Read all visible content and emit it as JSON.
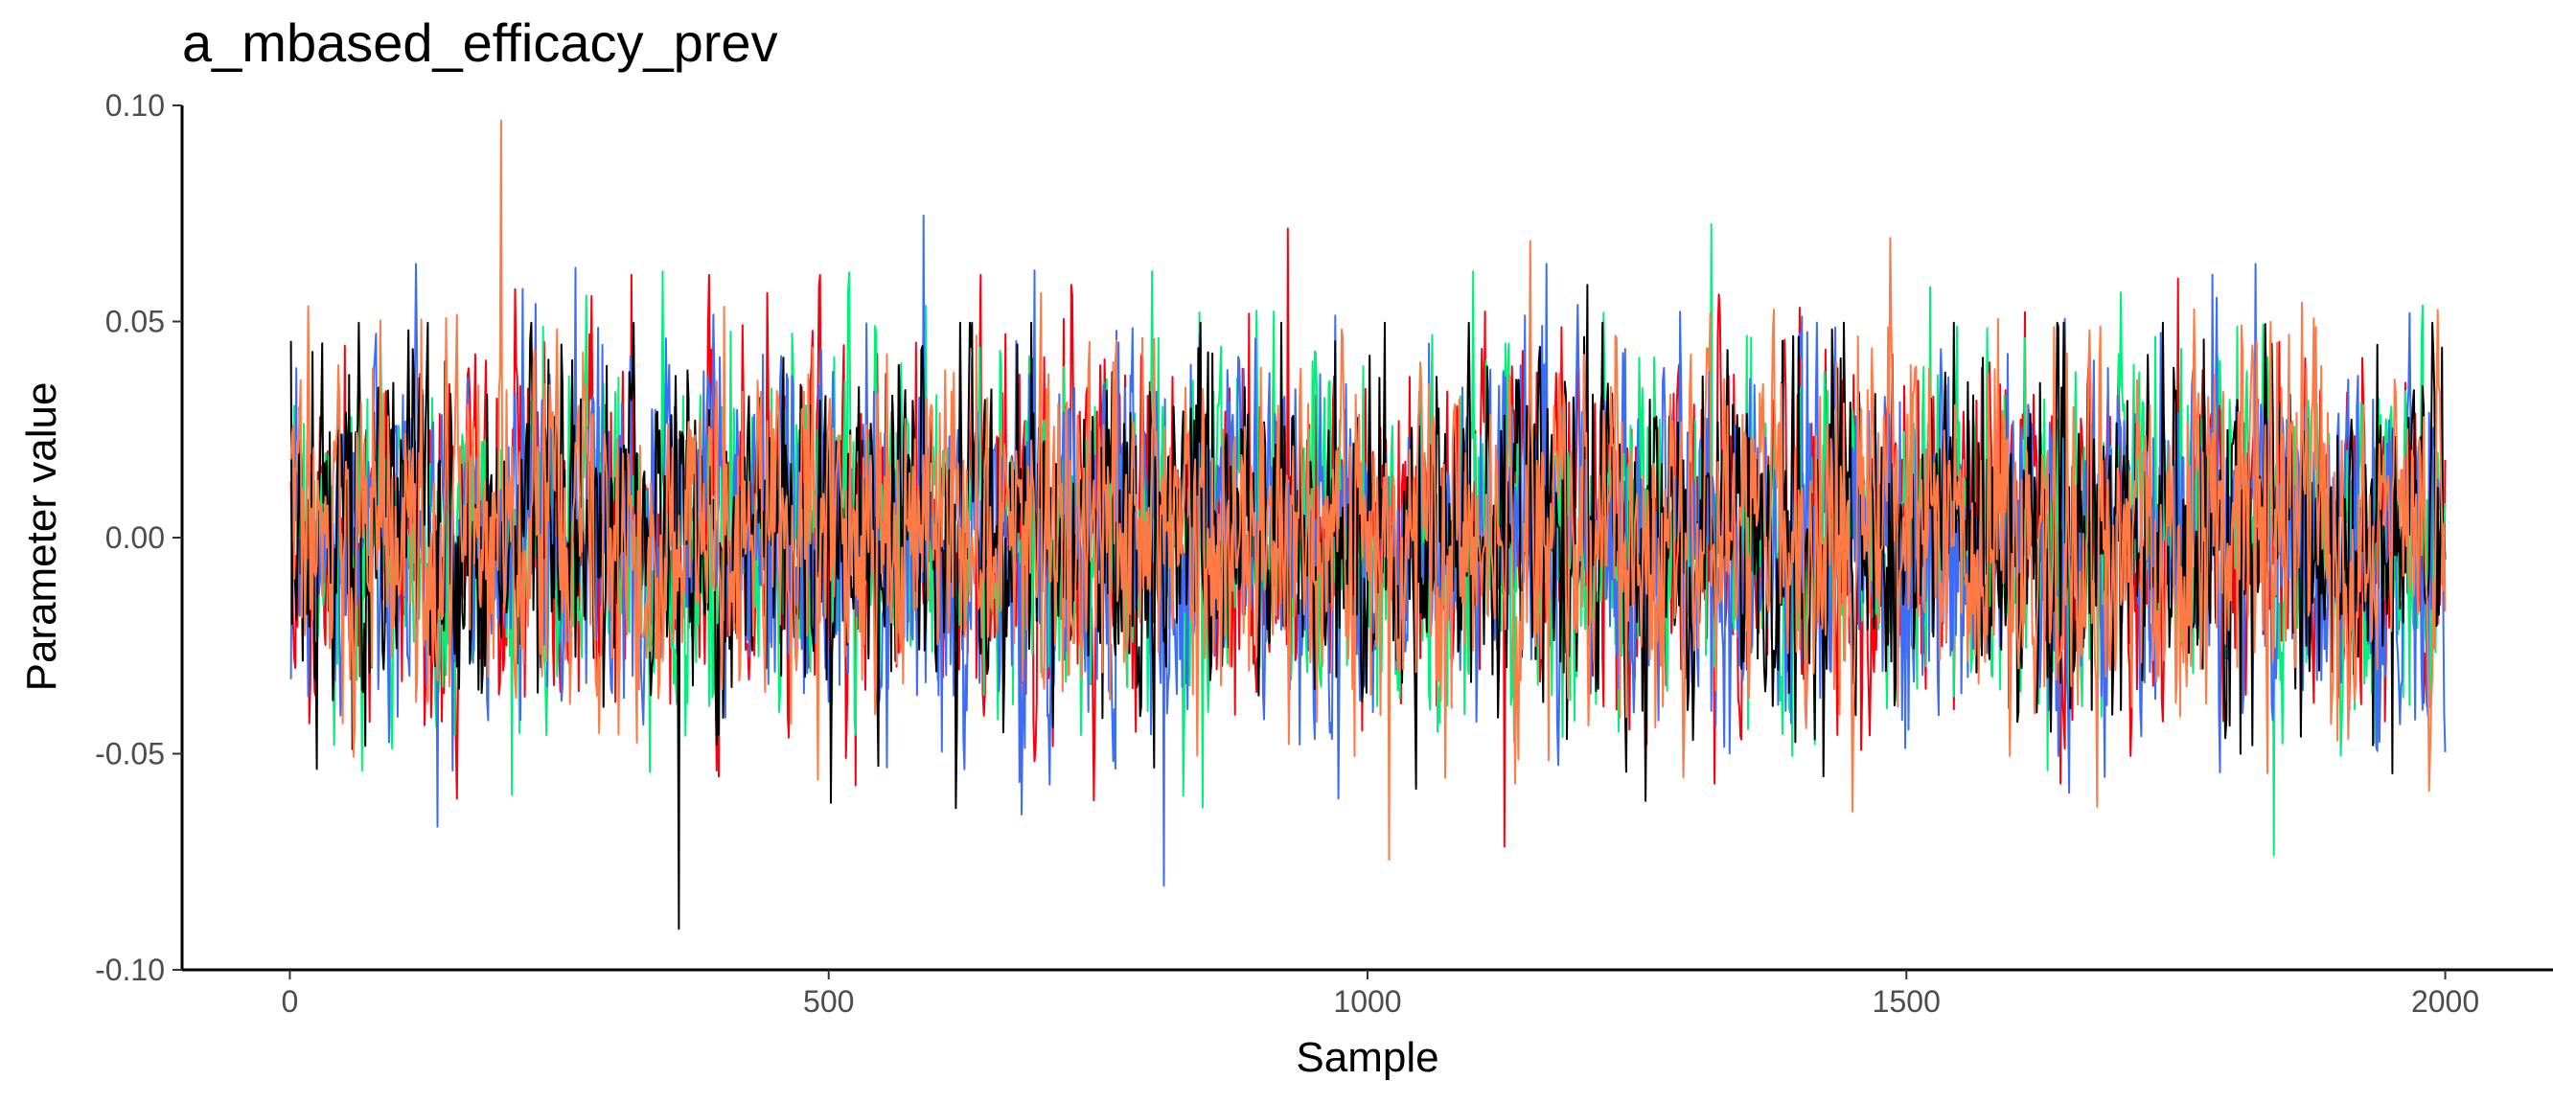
{
  "chart_data": {
    "type": "line",
    "title": "a_mbased_efficacy_prev",
    "xlabel": "Sample",
    "ylabel": "Parameter value",
    "xlim": [
      -100,
      2100
    ],
    "ylim": [
      -0.1,
      0.1
    ],
    "x_ticks": [
      0,
      500,
      1000,
      1500,
      2000
    ],
    "x_tick_labels": [
      "0",
      "500",
      "1000",
      "1500",
      "2000"
    ],
    "y_ticks": [
      -0.1,
      -0.05,
      0.0,
      0.05,
      0.1
    ],
    "y_tick_labels": [
      "-0.10",
      "-0.05",
      "0.00",
      "0.05",
      "0.10"
    ],
    "grid": false,
    "legend": "none",
    "n_samples": 2000,
    "series": [
      {
        "color": "#F8000E",
        "mean": 0.0,
        "sd": 0.0205,
        "min": -0.0715,
        "max": 0.0715
      },
      {
        "color": "#00F07A",
        "mean": 0.0,
        "sd": 0.0205,
        "min": -0.0735,
        "max": 0.0725
      },
      {
        "color": "#3D6DF5",
        "mean": 0.0,
        "sd": 0.0205,
        "min": -0.0805,
        "max": 0.0745
      },
      {
        "color": "#000000",
        "mean": 0.0,
        "sd": 0.0205,
        "min": -0.0905,
        "max": 0.0585
      },
      {
        "color": "#FF7A45",
        "mean": 0.0,
        "sd": 0.0205,
        "min": -0.0745,
        "max": 0.0965
      }
    ]
  }
}
